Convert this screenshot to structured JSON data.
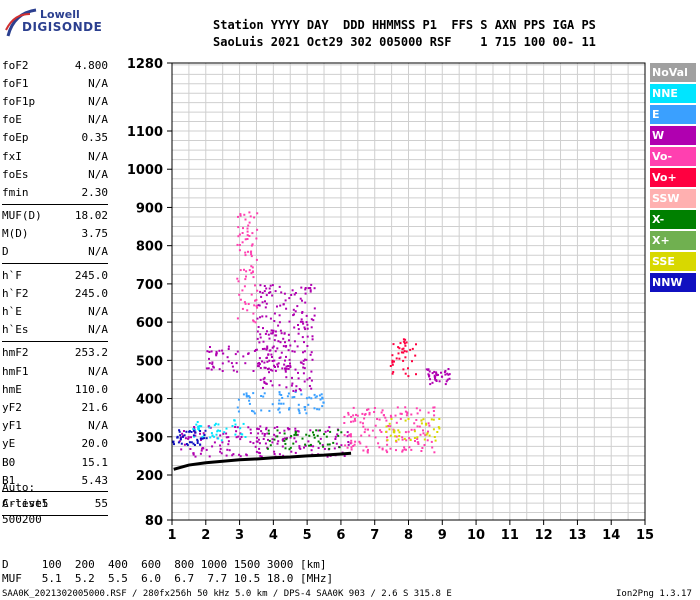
{
  "logo": {
    "line1": "Lowell",
    "line2": "DIGISONDE"
  },
  "header": {
    "line1": "Station YYYY DAY  DDD HHMMSS P1  FFS S AXN PPS IGA PS",
    "line2": "SaoLuis 2021 Oct29 302 005000 RSF    1 715 100 00- 11"
  },
  "params_group1": [
    {
      "name": "foF2",
      "value": "4.800"
    },
    {
      "name": "foF1",
      "value": "N/A"
    },
    {
      "name": "foF1p",
      "value": "N/A"
    },
    {
      "name": "foE",
      "value": "N/A"
    },
    {
      "name": "foEp",
      "value": "0.35"
    },
    {
      "name": "fxI",
      "value": "N/A"
    },
    {
      "name": "foEs",
      "value": "N/A"
    },
    {
      "name": "fmin",
      "value": "2.30"
    }
  ],
  "params_group2": [
    {
      "name": "MUF(D)",
      "value": "18.02"
    },
    {
      "name": "M(D)",
      "value": "3.75"
    },
    {
      "name": "D",
      "value": "N/A"
    }
  ],
  "params_group3": [
    {
      "name": "h`F",
      "value": "245.0"
    },
    {
      "name": "h`F2",
      "value": "245.0"
    },
    {
      "name": "h`E",
      "value": "N/A"
    },
    {
      "name": "h`Es",
      "value": "N/A"
    }
  ],
  "params_group4": [
    {
      "name": "hmF2",
      "value": "253.2"
    },
    {
      "name": "hmF1",
      "value": "N/A"
    },
    {
      "name": "hmE",
      "value": "110.0"
    },
    {
      "name": "yF2",
      "value": "21.6"
    },
    {
      "name": "yF1",
      "value": "N/A"
    },
    {
      "name": "yE",
      "value": "20.0"
    },
    {
      "name": "B0",
      "value": "15.1"
    },
    {
      "name": "B1",
      "value": "5.43"
    }
  ],
  "params_group5": [
    {
      "name": "C-level",
      "value": "55"
    }
  ],
  "auto": {
    "line1": "Auto:",
    "line2": "Artist5",
    "line3": "500200"
  },
  "legend": [
    {
      "label": "NoVal",
      "color": "#a0a0a0"
    },
    {
      "label": "NNE",
      "color": "#00e5ff"
    },
    {
      "label": "E",
      "color": "#3aa0ff"
    },
    {
      "label": "W",
      "color": "#b000b0"
    },
    {
      "label": "Vo-",
      "color": "#ff40b0"
    },
    {
      "label": "Vo+",
      "color": "#ff0040"
    },
    {
      "label": "SSW",
      "color": "#ffb0b0"
    },
    {
      "label": "X-",
      "color": "#008000"
    },
    {
      "label": "X+",
      "color": "#70b050"
    },
    {
      "label": "SSE",
      "color": "#d8d800"
    },
    {
      "label": "NNW",
      "color": "#1010c0"
    }
  ],
  "chart_data": {
    "type": "scatter",
    "title": "",
    "xlabel": "",
    "ylabel": "",
    "xlim": [
      1,
      15
    ],
    "ylim": [
      80,
      1280
    ],
    "x_ticks": [
      "1",
      "2",
      "3",
      "4",
      "5",
      "6",
      "7",
      "8",
      "9",
      "10",
      "11",
      "12",
      "13",
      "14",
      "15"
    ],
    "y_ticks": [
      "80",
      "200",
      "300",
      "400",
      "500",
      "600",
      "700",
      "800",
      "900",
      "1000",
      "1100",
      "1280"
    ],
    "grid": true,
    "trace": {
      "x": [
        1.05,
        1.5,
        2,
        2.5,
        3,
        3.5,
        4,
        4.5,
        5,
        5.5,
        6,
        6.3
      ],
      "y": [
        215,
        226,
        232,
        236,
        240,
        242,
        245,
        247,
        250,
        252,
        255,
        257
      ]
    },
    "echo_regions": [
      {
        "color": "#b000b0",
        "x": [
          1.2,
          6.4
        ],
        "y": [
          250,
          330
        ]
      },
      {
        "color": "#00e5ff",
        "x": [
          1.6,
          3.2
        ],
        "y": [
          290,
          350
        ]
      },
      {
        "color": "#008000",
        "x": [
          3.8,
          6.0
        ],
        "y": [
          270,
          320
        ]
      },
      {
        "color": "#ff40b0",
        "x": [
          6.0,
          8.8
        ],
        "y": [
          260,
          380
        ]
      },
      {
        "color": "#d8d800",
        "x": [
          7.3,
          8.9
        ],
        "y": [
          290,
          350
        ]
      },
      {
        "color": "#3aa0ff",
        "x": [
          2.9,
          5.5
        ],
        "y": [
          360,
          420
        ]
      },
      {
        "color": "#b000b0",
        "x": [
          2.0,
          4.5
        ],
        "y": [
          470,
          540
        ]
      },
      {
        "color": "#b000b0",
        "x": [
          8.5,
          9.2
        ],
        "y": [
          440,
          480
        ]
      },
      {
        "color": "#ff0040",
        "x": [
          7.4,
          8.2
        ],
        "y": [
          460,
          560
        ]
      },
      {
        "color": "#b000b0",
        "x": [
          3.5,
          5.2
        ],
        "y": [
          420,
          700
        ]
      },
      {
        "color": "#ff40b0",
        "x": [
          2.9,
          3.5
        ],
        "y": [
          600,
          890
        ]
      },
      {
        "color": "#1010c0",
        "x": [
          1.0,
          2.0
        ],
        "y": [
          280,
          320
        ]
      }
    ]
  },
  "bottom": {
    "d_label": "D",
    "d_values": "100  200  400  600  800 1000 1500 3000 [km]",
    "muf_label": "MUF",
    "muf_values": "5.1  5.2  5.5  6.0  6.7  7.7 10.5 18.0 [MHz]"
  },
  "footer": {
    "left": "SAA0K_2021302005000.RSF / 280fx256h 50 kHz 5.0 km / DPS-4 SAA0K 903 / 2.6 S 315.8 E",
    "right": "Ion2Png 1.3.17"
  }
}
